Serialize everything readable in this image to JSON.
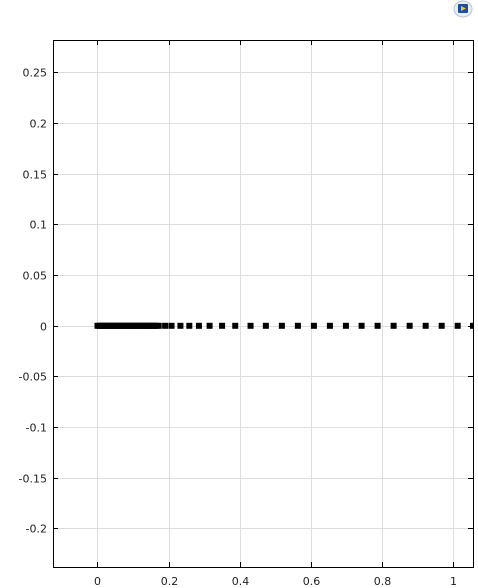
{
  "app": {
    "badge_icon": "comsol-logo-icon"
  },
  "chart_data": {
    "type": "scatter",
    "title": "",
    "xlabel": "",
    "ylabel": "",
    "xlim": [
      -0.125,
      1.055
    ],
    "ylim": [
      -0.238,
      0.282
    ],
    "grid": true,
    "x_ticks": [
      0,
      0.2,
      0.4,
      0.6,
      0.8,
      1
    ],
    "x_tick_labels": [
      "0",
      "0.2",
      "0.4",
      "0.6",
      "0.8",
      "1"
    ],
    "y_ticks": [
      0.25,
      0.2,
      0.15,
      0.1,
      0.05,
      0,
      -0.05,
      -0.1,
      -0.15,
      -0.2
    ],
    "y_tick_labels": [
      "0.25",
      "0.2",
      "0.15",
      "0.1",
      "0.05",
      "0",
      "-0.05",
      "-0.1",
      "-0.15",
      "-0.2"
    ],
    "marker": "square",
    "marker_color": "#000000",
    "series": [
      {
        "x": [
          0.0,
          0.005,
          0.01,
          0.015,
          0.02,
          0.025,
          0.03,
          0.035,
          0.04,
          0.045,
          0.05,
          0.055,
          0.06,
          0.065,
          0.07,
          0.075,
          0.08,
          0.085,
          0.09,
          0.095,
          0.1,
          0.105,
          0.11,
          0.115,
          0.12,
          0.125,
          0.13,
          0.135,
          0.14,
          0.145,
          0.15,
          0.155,
          0.16,
          0.165,
          0.172,
          0.19,
          0.208,
          0.233,
          0.258,
          0.285,
          0.315,
          0.35,
          0.387,
          0.43,
          0.473,
          0.518,
          0.563,
          0.608,
          0.653,
          0.698,
          0.742,
          0.787,
          0.832,
          0.877,
          0.922,
          0.967,
          1.012,
          1.055
        ],
        "y": [
          0,
          0,
          0,
          0,
          0,
          0,
          0,
          0,
          0,
          0,
          0,
          0,
          0,
          0,
          0,
          0,
          0,
          0,
          0,
          0,
          0,
          0,
          0,
          0,
          0,
          0,
          0,
          0,
          0,
          0,
          0,
          0,
          0,
          0,
          0,
          0,
          0,
          0,
          0,
          0,
          0,
          0,
          0,
          0,
          0,
          0,
          0,
          0,
          0,
          0,
          0,
          0,
          0,
          0,
          0,
          0,
          0,
          0
        ]
      }
    ]
  }
}
